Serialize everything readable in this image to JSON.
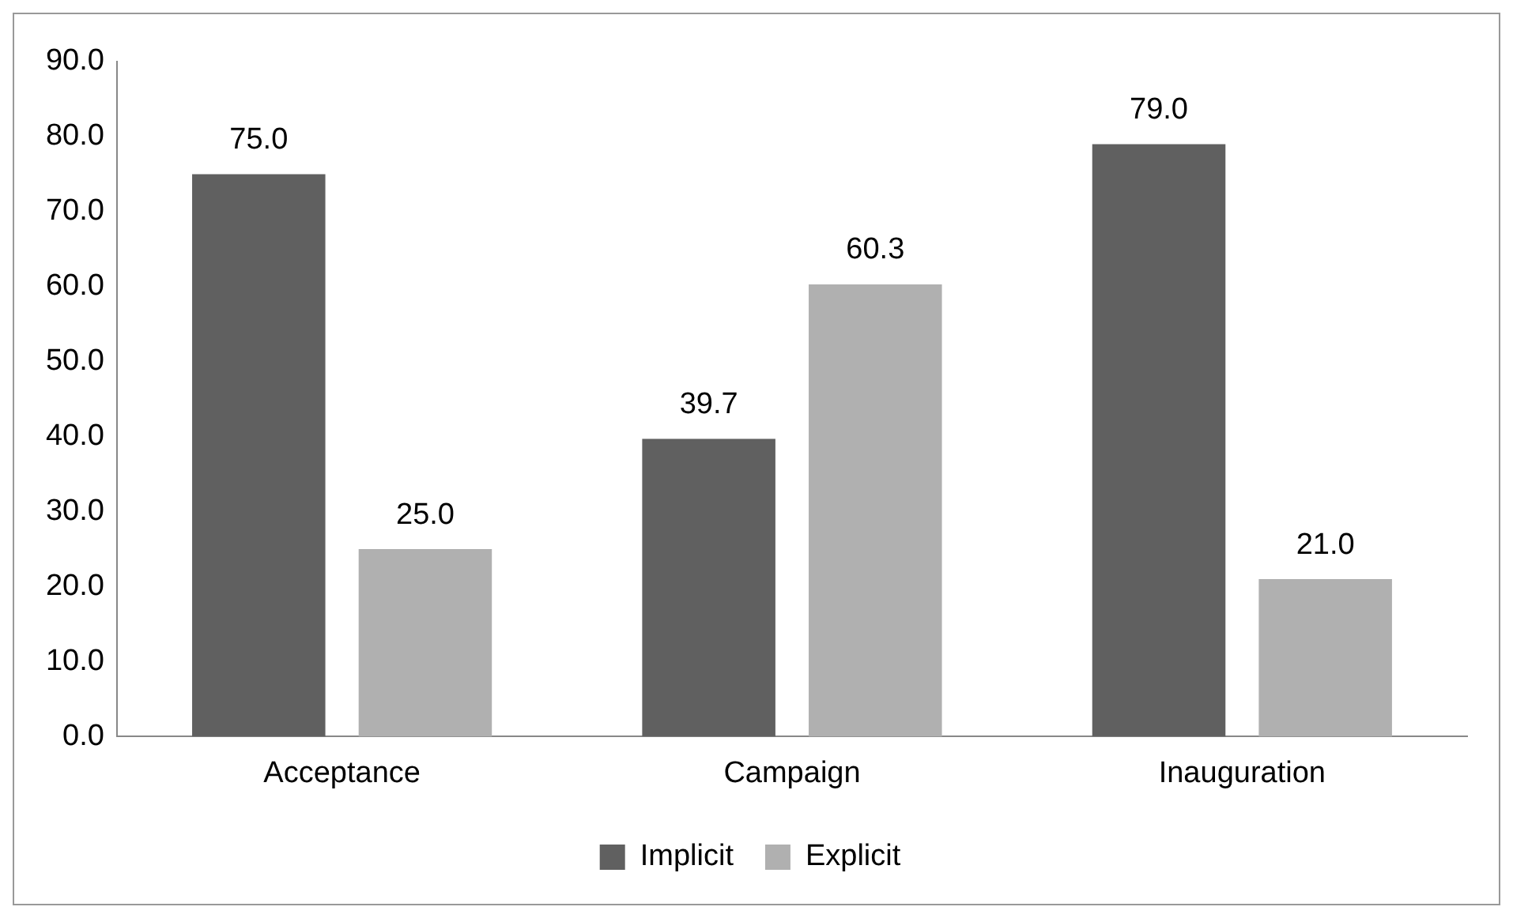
{
  "chart_data": {
    "type": "bar",
    "categories": [
      "Acceptance",
      "Campaign",
      "Inauguration"
    ],
    "series": [
      {
        "name": "Implicit",
        "color": "#606060",
        "values": [
          75.0,
          39.7,
          79.0
        ],
        "value_labels": [
          "75.0",
          "39.7",
          "79.0"
        ]
      },
      {
        "name": "Explicit",
        "color": "#b0b0b0",
        "values": [
          25.0,
          60.3,
          21.0
        ],
        "value_labels": [
          "25.0",
          "60.3",
          "21.0"
        ]
      }
    ],
    "ylim": [
      0,
      90
    ],
    "yticks": [
      {
        "value": 0,
        "label": "0.0"
      },
      {
        "value": 10,
        "label": "10.0"
      },
      {
        "value": 20,
        "label": "20.0"
      },
      {
        "value": 30,
        "label": "30.0"
      },
      {
        "value": 40,
        "label": "40.0"
      },
      {
        "value": 50,
        "label": "50.0"
      },
      {
        "value": 60,
        "label": "60.0"
      },
      {
        "value": 70,
        "label": "70.0"
      },
      {
        "value": 80,
        "label": "80.0"
      },
      {
        "value": 90,
        "label": "90.0"
      }
    ],
    "grid": false,
    "legend": "bottom"
  }
}
